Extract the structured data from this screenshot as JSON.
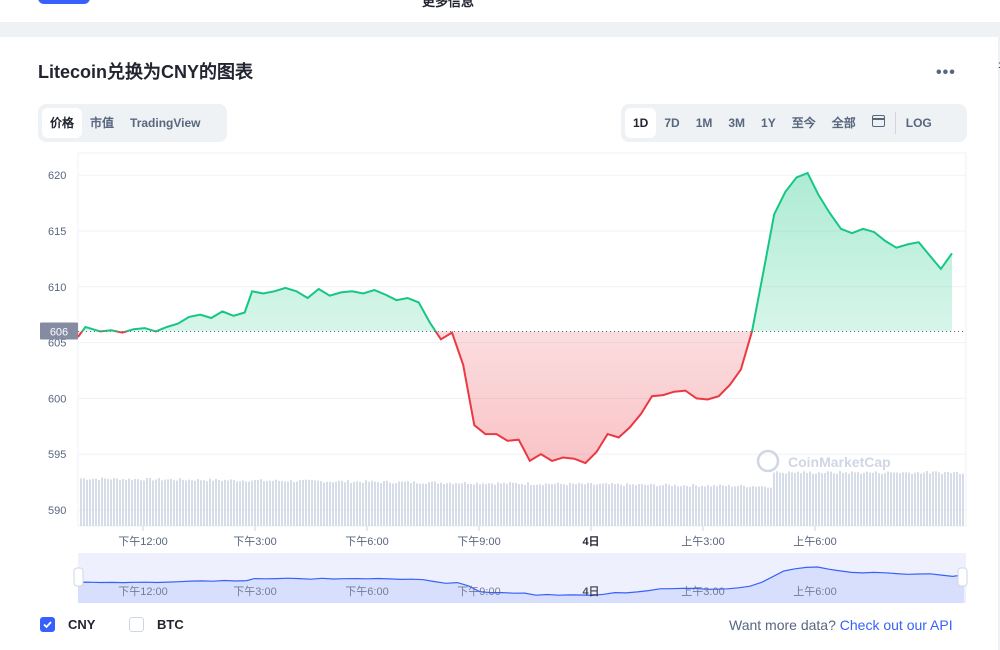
{
  "topbar": {
    "more_info": "更多信息"
  },
  "title": "Litecoin兑换为CNY的图表",
  "menu_icon": "more-horizontal-icon",
  "type_tabs": [
    {
      "label": "价格",
      "active": true
    },
    {
      "label": "市值",
      "active": false
    },
    {
      "label": "TradingView",
      "active": false
    }
  ],
  "range_tabs": [
    {
      "label": "1D",
      "active": true
    },
    {
      "label": "7D",
      "active": false
    },
    {
      "label": "1M",
      "active": false
    },
    {
      "label": "3M",
      "active": false
    },
    {
      "label": "1Y",
      "active": false
    },
    {
      "label": "至今",
      "active": false
    },
    {
      "label": "全部",
      "active": false
    }
  ],
  "calendar_icon": "calendar-icon",
  "log_label": "LOG",
  "watermark": "CoinMarketCap",
  "legend": {
    "cny": "CNY",
    "btc": "BTC"
  },
  "footer": {
    "text": "Want more data?",
    "link": "Check out our API"
  },
  "colors": {
    "up": "#16c784",
    "down": "#ea3943",
    "accent": "#3861fb",
    "volume": "#cfd6e4",
    "navigator": "#e2e7fb"
  },
  "chart_data": {
    "type": "line",
    "title": "Litecoin兑换为CNY的图表",
    "baseline": 606,
    "baseline_label": "606",
    "ylim": [
      588.5,
      622
    ],
    "yticks": [
      590,
      595,
      600,
      605,
      610,
      615,
      620
    ],
    "ytick_labels": [
      "590",
      "595",
      "600",
      "605",
      "610",
      "615",
      "620"
    ],
    "x_range_hours": [
      10.4,
      29.9
    ],
    "xticks": [
      {
        "t": 12,
        "label": "下午12:00",
        "bold": false
      },
      {
        "t": 15,
        "label": "下午3:00",
        "bold": false
      },
      {
        "t": 18,
        "label": "下午6:00",
        "bold": false
      },
      {
        "t": 21,
        "label": "下午9:00",
        "bold": false
      },
      {
        "t": 24,
        "label": "4日",
        "bold": true
      },
      {
        "t": 27,
        "label": "上午3:00",
        "bold": false
      },
      {
        "t": 30,
        "label": "上午6:00",
        "bold": false
      }
    ],
    "price_series": {
      "name": "CNY",
      "t": [
        10.4,
        10.6,
        10.8,
        11.0,
        11.3,
        11.6,
        11.9,
        12.2,
        12.5,
        12.8,
        13.1,
        13.4,
        13.7,
        14.0,
        14.3,
        14.6,
        14.9,
        15.1,
        15.4,
        15.7,
        16.0,
        16.3,
        16.6,
        16.9,
        17.2,
        17.5,
        17.8,
        18.1,
        18.4,
        18.7,
        19.0,
        19.3,
        19.6,
        19.9,
        20.2,
        20.5,
        20.8,
        21.1,
        21.4,
        21.7,
        22.0,
        22.3,
        22.6,
        22.9,
        23.2,
        23.5,
        23.8,
        24.1,
        24.4,
        24.7,
        25.0,
        25.3,
        25.6,
        25.9,
        26.2,
        26.5,
        26.8,
        27.1,
        27.4,
        27.7,
        28.0,
        28.3,
        28.6,
        28.9,
        29.2,
        29.5,
        29.8,
        30.1,
        30.4,
        30.7,
        31.0,
        31.3,
        31.6,
        31.9,
        32.2,
        32.5,
        32.8,
        33.1,
        33.4,
        33.7,
        34.0
      ],
      "values": [
        605.5,
        606.4,
        606.2,
        606.0,
        606.1,
        605.9,
        606.2,
        606.3,
        606.0,
        606.4,
        606.7,
        607.3,
        607.5,
        607.2,
        607.8,
        607.4,
        607.7,
        609.6,
        609.4,
        609.6,
        609.9,
        609.6,
        609.0,
        609.8,
        609.2,
        609.5,
        609.6,
        609.4,
        609.7,
        609.3,
        608.8,
        609.0,
        608.6,
        606.8,
        605.3,
        605.9,
        603.0,
        597.6,
        596.8,
        596.8,
        596.2,
        596.3,
        594.4,
        595.0,
        594.4,
        594.7,
        594.6,
        594.2,
        595.2,
        596.8,
        596.5,
        597.4,
        598.6,
        600.2,
        600.3,
        600.6,
        600.7,
        600.0,
        599.9,
        600.2,
        601.2,
        602.6,
        606.0,
        611.2,
        616.5,
        618.5,
        619.8,
        620.2,
        618.2,
        616.6,
        615.2,
        614.8,
        615.2,
        614.9,
        614.1,
        613.5,
        613.8,
        614.0,
        612.8,
        611.6,
        613.0
      ]
    },
    "volume_note": "volume bars"
  }
}
